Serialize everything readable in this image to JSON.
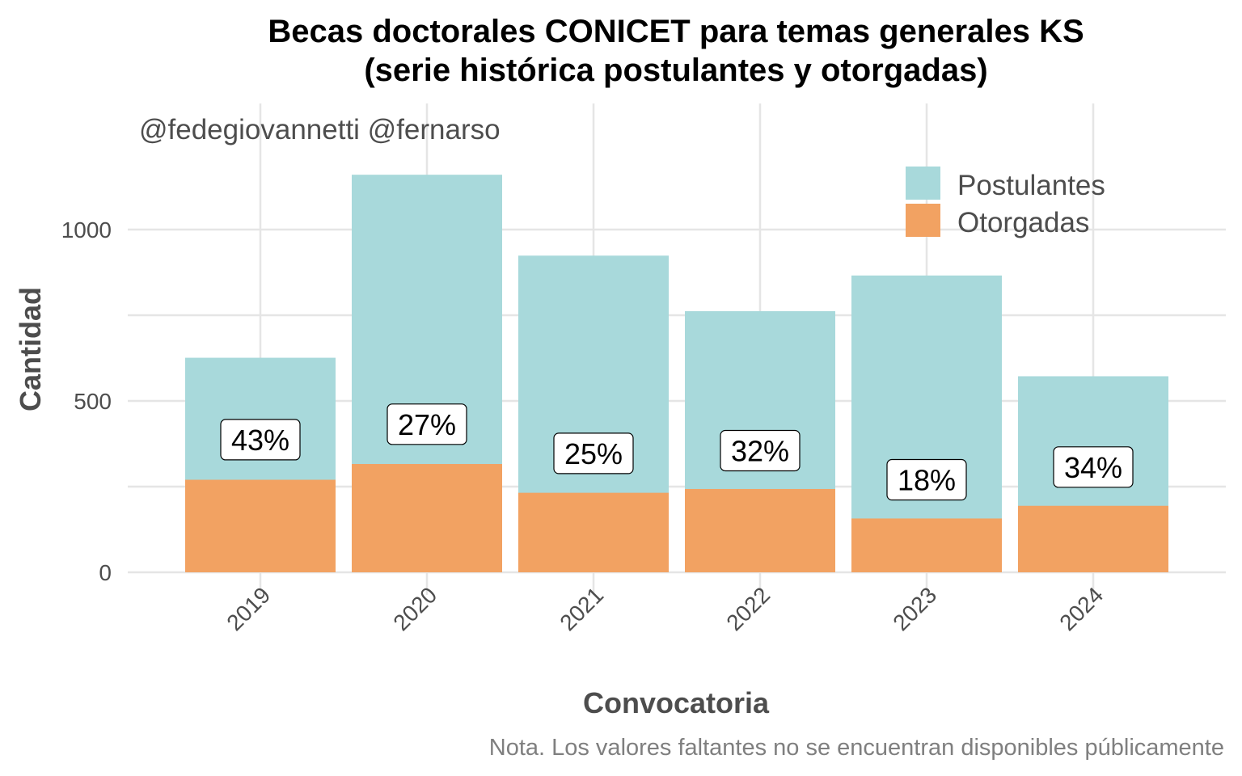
{
  "chart_data": {
    "type": "bar",
    "stacked": true,
    "title_line1": "Becas doctorales CONICET para temas generales KS",
    "title_line2": "(serie histórica postulantes y otorgadas)",
    "credit": "@fedegiovannetti @fernarso",
    "xlabel": "Convocatoria",
    "ylabel": "Cantidad",
    "caption": "Nota. Los valores faltantes no se encuentran disponibles públicamente",
    "categories": [
      "2019",
      "2020",
      "2021",
      "2022",
      "2023",
      "2024"
    ],
    "yticks": [
      0,
      500,
      1000
    ],
    "ytick_labels": [
      "0",
      "500",
      "1000"
    ],
    "ylim": [
      0,
      1350
    ],
    "series": [
      {
        "name": "Postulantes",
        "color": "#a8d9db",
        "values": [
          626,
          1160,
          924,
          762,
          866,
          572
        ]
      },
      {
        "name": "Otorgadas",
        "color": "#f2a262",
        "values": [
          270,
          316,
          232,
          243,
          157,
          194
        ]
      }
    ],
    "labels": [
      "43%",
      "27%",
      "25%",
      "32%",
      "18%",
      "34%"
    ],
    "label_values": [
      387,
      432,
      347,
      355,
      270,
      307
    ],
    "legend_position": "top-right",
    "grid": true
  }
}
